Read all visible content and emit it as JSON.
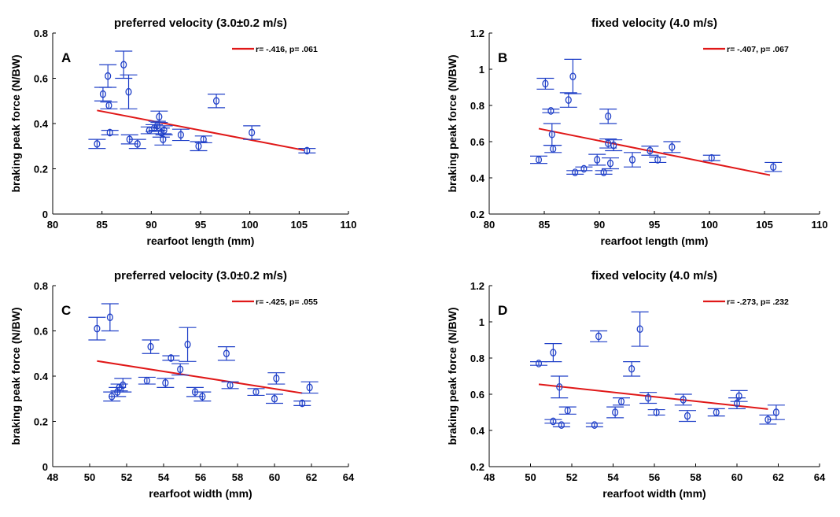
{
  "colors": {
    "marker": "#2040c8",
    "fit": "#e01818",
    "axis": "#000000"
  },
  "chart_data": [
    {
      "type": "scatter",
      "panel_letter": "A",
      "title": "preferred velocity (3.0±0.2 m/s)",
      "xlabel": "rearfoot length (mm)",
      "ylabel": "braking peak force (N/BW)",
      "xlim": [
        80,
        110
      ],
      "ylim": [
        0,
        0.8
      ],
      "xticks": [
        "80",
        "85",
        "90",
        "95",
        "100",
        "105",
        "110"
      ],
      "yticks": [
        "0",
        "0.2",
        "0.4",
        "0.6",
        "0.8"
      ],
      "legend": {
        "label": "r= -.416, p= .061",
        "position": "top-right"
      },
      "fit_line": {
        "x": [
          84.5,
          105.5
        ],
        "y": [
          0.458,
          0.282
        ]
      },
      "points": [
        {
          "x": 84.5,
          "y": 0.31,
          "err": 0.02
        },
        {
          "x": 85.1,
          "y": 0.53,
          "err": 0.03
        },
        {
          "x": 85.6,
          "y": 0.61,
          "err": 0.05
        },
        {
          "x": 85.7,
          "y": 0.48,
          "err": 0.015
        },
        {
          "x": 85.8,
          "y": 0.36,
          "err": 0.01
        },
        {
          "x": 87.2,
          "y": 0.66,
          "err": 0.06
        },
        {
          "x": 87.7,
          "y": 0.54,
          "err": 0.075
        },
        {
          "x": 87.8,
          "y": 0.33,
          "err": 0.02
        },
        {
          "x": 88.6,
          "y": 0.31,
          "err": 0.02
        },
        {
          "x": 89.8,
          "y": 0.37,
          "err": 0.015
        },
        {
          "x": 90.3,
          "y": 0.38,
          "err": 0.015
        },
        {
          "x": 90.6,
          "y": 0.39,
          "err": 0.02
        },
        {
          "x": 90.8,
          "y": 0.43,
          "err": 0.025
        },
        {
          "x": 91.0,
          "y": 0.36,
          "err": 0.02
        },
        {
          "x": 91.2,
          "y": 0.33,
          "err": 0.025
        },
        {
          "x": 91.3,
          "y": 0.37,
          "err": 0.02
        },
        {
          "x": 93.0,
          "y": 0.35,
          "err": 0.025
        },
        {
          "x": 94.8,
          "y": 0.3,
          "err": 0.02
        },
        {
          "x": 95.3,
          "y": 0.33,
          "err": 0.015
        },
        {
          "x": 96.6,
          "y": 0.5,
          "err": 0.03
        },
        {
          "x": 100.2,
          "y": 0.36,
          "err": 0.03
        },
        {
          "x": 105.8,
          "y": 0.28,
          "err": 0.01
        }
      ]
    },
    {
      "type": "scatter",
      "panel_letter": "B",
      "title": "fixed velocity (4.0 m/s)",
      "xlabel": "rearfoot length (mm)",
      "ylabel": "braking peak force (N/BW)",
      "xlim": [
        80,
        110
      ],
      "ylim": [
        0.2,
        1.2
      ],
      "xticks": [
        "80",
        "85",
        "90",
        "95",
        "100",
        "105",
        "110"
      ],
      "yticks": [
        "0.2",
        "0.4",
        "0.6",
        "0.8",
        "1",
        "1.2"
      ],
      "legend": {
        "label": "r= -.407, p= .067",
        "position": "top-right"
      },
      "fit_line": {
        "x": [
          84.5,
          105.5
        ],
        "y": [
          0.672,
          0.415
        ]
      },
      "points": [
        {
          "x": 84.5,
          "y": 0.5,
          "err": 0.02
        },
        {
          "x": 85.1,
          "y": 0.92,
          "err": 0.03
        },
        {
          "x": 85.6,
          "y": 0.77,
          "err": 0.01
        },
        {
          "x": 85.7,
          "y": 0.64,
          "err": 0.06
        },
        {
          "x": 85.8,
          "y": 0.56,
          "err": 0.02
        },
        {
          "x": 87.2,
          "y": 0.83,
          "err": 0.04
        },
        {
          "x": 87.6,
          "y": 0.96,
          "err": 0.095
        },
        {
          "x": 87.8,
          "y": 0.43,
          "err": 0.01
        },
        {
          "x": 88.6,
          "y": 0.45,
          "err": 0.01
        },
        {
          "x": 89.8,
          "y": 0.5,
          "err": 0.03
        },
        {
          "x": 90.4,
          "y": 0.43,
          "err": 0.01
        },
        {
          "x": 90.8,
          "y": 0.74,
          "err": 0.04
        },
        {
          "x": 90.8,
          "y": 0.59,
          "err": 0.025
        },
        {
          "x": 91.0,
          "y": 0.48,
          "err": 0.03
        },
        {
          "x": 91.3,
          "y": 0.58,
          "err": 0.03
        },
        {
          "x": 93.0,
          "y": 0.5,
          "err": 0.04
        },
        {
          "x": 94.6,
          "y": 0.55,
          "err": 0.025
        },
        {
          "x": 95.3,
          "y": 0.5,
          "err": 0.015
        },
        {
          "x": 96.6,
          "y": 0.57,
          "err": 0.03
        },
        {
          "x": 100.2,
          "y": 0.51,
          "err": 0.015
        },
        {
          "x": 105.8,
          "y": 0.46,
          "err": 0.025
        }
      ]
    },
    {
      "type": "scatter",
      "panel_letter": "C",
      "title": "preferred velocity (3.0±0.2 m/s)",
      "xlabel": "rearfoot width (mm)",
      "ylabel": "braking peak force (N/BW)",
      "xlim": [
        48,
        64
      ],
      "ylim": [
        0,
        0.8
      ],
      "xticks": [
        "48",
        "50",
        "52",
        "54",
        "56",
        "58",
        "60",
        "62",
        "64"
      ],
      "yticks": [
        "0",
        "0.2",
        "0.4",
        "0.6",
        "0.8"
      ],
      "legend": {
        "label": "r= -.425, p= .055",
        "position": "top-right"
      },
      "fit_line": {
        "x": [
          50.4,
          61.5
        ],
        "y": [
          0.467,
          0.325
        ]
      },
      "points": [
        {
          "x": 50.4,
          "y": 0.61,
          "err": 0.05
        },
        {
          "x": 51.1,
          "y": 0.66,
          "err": 0.06
        },
        {
          "x": 51.2,
          "y": 0.31,
          "err": 0.02
        },
        {
          "x": 51.5,
          "y": 0.33,
          "err": 0.02
        },
        {
          "x": 51.6,
          "y": 0.35,
          "err": 0.015
        },
        {
          "x": 51.8,
          "y": 0.36,
          "err": 0.03
        },
        {
          "x": 53.1,
          "y": 0.38,
          "err": 0.015
        },
        {
          "x": 53.3,
          "y": 0.53,
          "err": 0.03
        },
        {
          "x": 54.1,
          "y": 0.37,
          "err": 0.02
        },
        {
          "x": 54.4,
          "y": 0.48,
          "err": 0.01
        },
        {
          "x": 54.9,
          "y": 0.43,
          "err": 0.025
        },
        {
          "x": 55.3,
          "y": 0.54,
          "err": 0.075
        },
        {
          "x": 55.7,
          "y": 0.33,
          "err": 0.02
        },
        {
          "x": 56.1,
          "y": 0.31,
          "err": 0.02
        },
        {
          "x": 57.4,
          "y": 0.5,
          "err": 0.03
        },
        {
          "x": 57.6,
          "y": 0.36,
          "err": 0.015
        },
        {
          "x": 59.0,
          "y": 0.33,
          "err": 0.015
        },
        {
          "x": 60.0,
          "y": 0.3,
          "err": 0.02
        },
        {
          "x": 60.1,
          "y": 0.39,
          "err": 0.025
        },
        {
          "x": 61.5,
          "y": 0.28,
          "err": 0.01
        },
        {
          "x": 61.9,
          "y": 0.35,
          "err": 0.025
        }
      ]
    },
    {
      "type": "scatter",
      "panel_letter": "D",
      "title": "fixed velocity (4.0 m/s)",
      "xlabel": "rearfoot width (mm)",
      "ylabel": "braking peak force (N/BW)",
      "xlim": [
        48,
        64
      ],
      "ylim": [
        0.2,
        1.2
      ],
      "xticks": [
        "48",
        "50",
        "52",
        "54",
        "56",
        "58",
        "60",
        "62",
        "64"
      ],
      "yticks": [
        "0.2",
        "0.4",
        "0.6",
        "0.8",
        "1",
        "1.2"
      ],
      "legend": {
        "label": "r= -.273, p= .232",
        "position": "top-right"
      },
      "fit_line": {
        "x": [
          50.4,
          61.5
        ],
        "y": [
          0.655,
          0.518
        ]
      },
      "points": [
        {
          "x": 50.4,
          "y": 0.77,
          "err": 0.01
        },
        {
          "x": 51.1,
          "y": 0.83,
          "err": 0.05
        },
        {
          "x": 51.1,
          "y": 0.45,
          "err": 0.01
        },
        {
          "x": 51.4,
          "y": 0.64,
          "err": 0.06
        },
        {
          "x": 51.5,
          "y": 0.43,
          "err": 0.01
        },
        {
          "x": 51.8,
          "y": 0.51,
          "err": 0.02
        },
        {
          "x": 53.1,
          "y": 0.43,
          "err": 0.01
        },
        {
          "x": 53.3,
          "y": 0.92,
          "err": 0.03
        },
        {
          "x": 54.1,
          "y": 0.5,
          "err": 0.03
        },
        {
          "x": 54.4,
          "y": 0.56,
          "err": 0.02
        },
        {
          "x": 54.9,
          "y": 0.74,
          "err": 0.04
        },
        {
          "x": 55.3,
          "y": 0.96,
          "err": 0.095
        },
        {
          "x": 55.7,
          "y": 0.58,
          "err": 0.03
        },
        {
          "x": 56.1,
          "y": 0.5,
          "err": 0.015
        },
        {
          "x": 57.4,
          "y": 0.57,
          "err": 0.03
        },
        {
          "x": 57.6,
          "y": 0.48,
          "err": 0.03
        },
        {
          "x": 59.0,
          "y": 0.5,
          "err": 0.02
        },
        {
          "x": 60.0,
          "y": 0.55,
          "err": 0.03
        },
        {
          "x": 60.1,
          "y": 0.59,
          "err": 0.03
        },
        {
          "x": 61.5,
          "y": 0.46,
          "err": 0.025
        },
        {
          "x": 61.9,
          "y": 0.5,
          "err": 0.04
        }
      ]
    }
  ]
}
